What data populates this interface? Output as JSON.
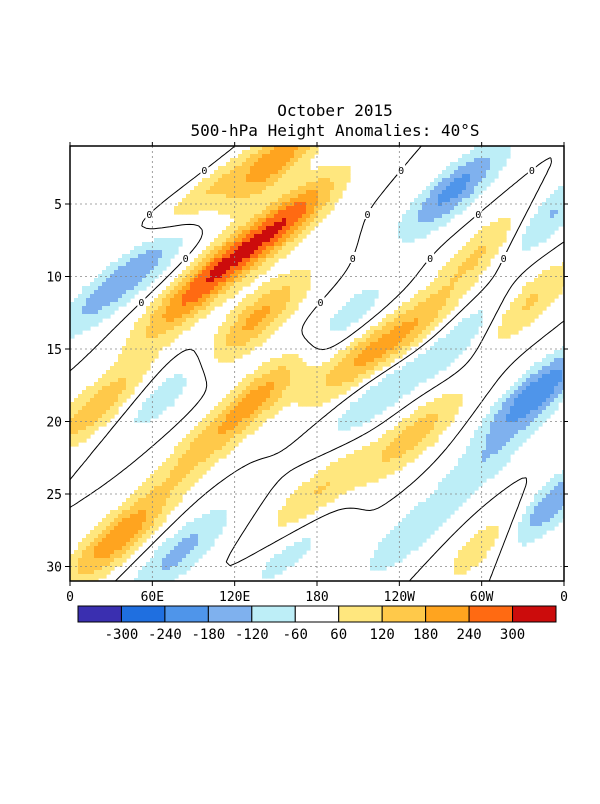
{
  "chart_data": {
    "type": "heatmap",
    "title": "October 2015",
    "subtitle": "500-hPa Height Anomalies: 40°S",
    "xlabel": "",
    "ylabel": "",
    "x_ticks": [
      "0",
      "60E",
      "120E",
      "180",
      "120W",
      "60W",
      "0"
    ],
    "x_tick_values": [
      0,
      60,
      120,
      180,
      240,
      300,
      360
    ],
    "xlim": [
      0,
      360
    ],
    "y_ticks": [
      "5",
      "10",
      "15",
      "20",
      "25",
      "30"
    ],
    "y_tick_values": [
      5,
      10,
      15,
      20,
      25,
      30
    ],
    "ylim": [
      1,
      31
    ],
    "y_reversed": true,
    "grid": true,
    "contour_label": "0",
    "colorbar": {
      "labels": [
        "-300",
        "-240",
        "-180",
        "-120",
        "-60",
        "60",
        "120",
        "180",
        "240",
        "300"
      ],
      "levels": [
        -300,
        -240,
        -180,
        -120,
        -60,
        60,
        120,
        180,
        240,
        300
      ],
      "colors": [
        "#3a2fb0",
        "#1f6fe0",
        "#4f95ea",
        "#7fb1ee",
        "#bdeef7",
        "#ffffff",
        "#ffe77e",
        "#ffc94a",
        "#ffa41f",
        "#ff6a12",
        "#cc0c0c"
      ]
    },
    "features": [
      {
        "label": "positive",
        "lon": 95,
        "day": 4,
        "value": 195
      },
      {
        "label": "positive",
        "lon": 115,
        "day": 9,
        "value": 210
      },
      {
        "label": "positive",
        "lon": 135,
        "day": 13,
        "value": 200
      },
      {
        "label": "positive",
        "lon": 150,
        "day": 2,
        "value": 220
      },
      {
        "label": "positive",
        "lon": 160,
        "day": 6,
        "value": 245
      },
      {
        "label": "positive",
        "lon": 140,
        "day": 18,
        "value": 185
      },
      {
        "label": "positive",
        "lon": 35,
        "day": 28,
        "value": 230
      },
      {
        "label": "positive",
        "lon": 20,
        "day": 19,
        "value": 165
      },
      {
        "label": "positive",
        "lon": 80,
        "day": 12,
        "value": 155
      },
      {
        "label": "positive",
        "lon": 205,
        "day": 16,
        "value": 140
      },
      {
        "label": "positive",
        "lon": 245,
        "day": 14,
        "value": 165
      },
      {
        "label": "positive",
        "lon": 305,
        "day": 8,
        "value": 150
      },
      {
        "label": "positive",
        "lon": 330,
        "day": 12,
        "value": 150
      },
      {
        "label": "positive",
        "lon": 310,
        "day": 28,
        "value": 140
      },
      {
        "label": "positive",
        "lon": 95,
        "day": 22,
        "value": 120
      },
      {
        "label": "positive",
        "lon": 250,
        "day": 21,
        "value": 150
      },
      {
        "label": "positive",
        "lon": 180,
        "day": 25,
        "value": 125
      },
      {
        "label": "negative",
        "lon": 280,
        "day": 4,
        "value": -200
      },
      {
        "label": "negative",
        "lon": 340,
        "day": 18,
        "value": -230
      },
      {
        "label": "negative",
        "lon": 345,
        "day": 26,
        "value": -210
      },
      {
        "label": "negative",
        "lon": 345,
        "day": 6,
        "value": -150
      },
      {
        "label": "negative",
        "lon": 55,
        "day": 9,
        "value": -140
      },
      {
        "label": "negative",
        "lon": 95,
        "day": 3,
        "value": -130
      },
      {
        "label": "negative",
        "lon": 15,
        "day": 12,
        "value": -95
      },
      {
        "label": "negative",
        "lon": 80,
        "day": 29,
        "value": -140
      },
      {
        "label": "negative",
        "lon": 225,
        "day": 18,
        "value": -125
      },
      {
        "label": "negative",
        "lon": 290,
        "day": 14,
        "value": -125
      },
      {
        "label": "negative",
        "lon": 300,
        "day": 23,
        "value": -95
      },
      {
        "label": "negative",
        "lon": 200,
        "day": 13,
        "value": -95
      },
      {
        "label": "negative",
        "lon": 245,
        "day": 28,
        "value": -100
      },
      {
        "label": "negative",
        "lon": 70,
        "day": 18,
        "value": -100
      },
      {
        "label": "negative",
        "lon": 160,
        "day": 29,
        "value": -85
      }
    ]
  }
}
